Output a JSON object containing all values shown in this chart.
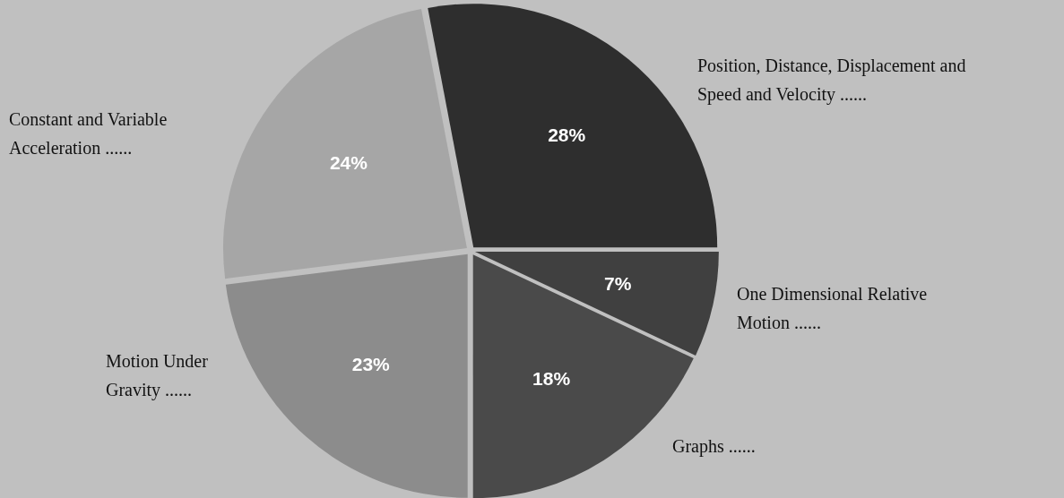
{
  "chart_data": {
    "type": "pie",
    "categories": [
      "Position, Distance,  Displacement and\nSpeed and Velocity ......",
      "Constant and Variable\nAcceleration ......",
      "Motion Under\nGravity ......",
      "Graphs ......",
      "One Dimensional Relative\nMotion ......"
    ],
    "values": [
      28,
      24,
      23,
      18,
      7
    ],
    "value_labels": [
      "28%",
      "24%",
      "23%",
      "18%",
      "7%"
    ],
    "colors": [
      "#2e2e2e",
      "#a6a6a6",
      "#8c8c8c",
      "#4a4a4a",
      "#404040"
    ]
  }
}
